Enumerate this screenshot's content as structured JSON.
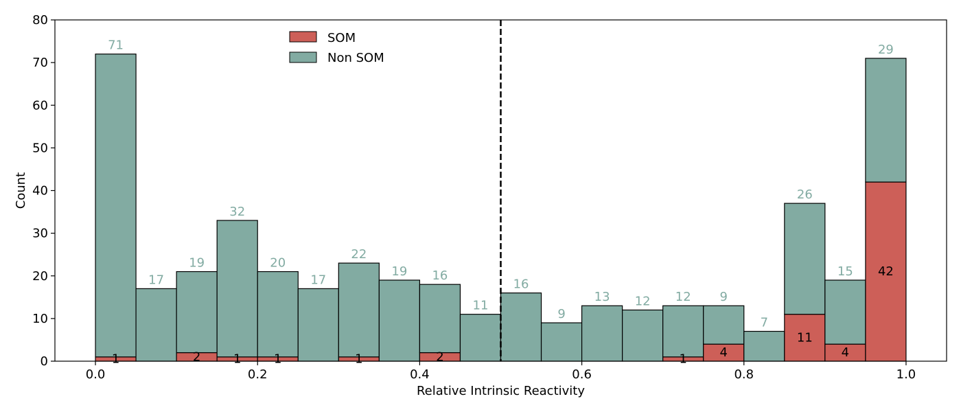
{
  "chart_data": {
    "type": "bar",
    "stacked": true,
    "bin_width": 0.05,
    "x": [
      0.0,
      0.05,
      0.1,
      0.15,
      0.2,
      0.25,
      0.3,
      0.35,
      0.4,
      0.45,
      0.5,
      0.55,
      0.6,
      0.65,
      0.7,
      0.75,
      0.8,
      0.85,
      0.9,
      0.95
    ],
    "series": [
      {
        "name": "SOM",
        "color": "#cd5f58",
        "values": [
          1,
          0,
          2,
          1,
          1,
          0,
          1,
          0,
          2,
          0,
          0,
          0,
          0,
          0,
          1,
          4,
          0,
          11,
          4,
          42
        ]
      },
      {
        "name": "Non SOM",
        "color": "#82aba2",
        "values": [
          71,
          17,
          19,
          32,
          20,
          17,
          22,
          19,
          16,
          11,
          16,
          9,
          13,
          12,
          12,
          9,
          7,
          26,
          15,
          29
        ]
      }
    ],
    "xlabel": "Relative Intrinsic Reactivity",
    "ylabel": "Count",
    "xlim": [
      -0.05,
      1.05
    ],
    "ylim": [
      0,
      80
    ],
    "xticks": [
      "0.0",
      "0.2",
      "0.4",
      "0.6",
      "0.8",
      "1.0"
    ],
    "yticks": [
      "0",
      "10",
      "20",
      "30",
      "40",
      "50",
      "60",
      "70",
      "80"
    ],
    "threshold_line": {
      "x": 0.5,
      "style": "dashed",
      "color": "#000000"
    },
    "grid": false,
    "legend": "top-left-center",
    "non_som_label_color": "#82aba2"
  }
}
